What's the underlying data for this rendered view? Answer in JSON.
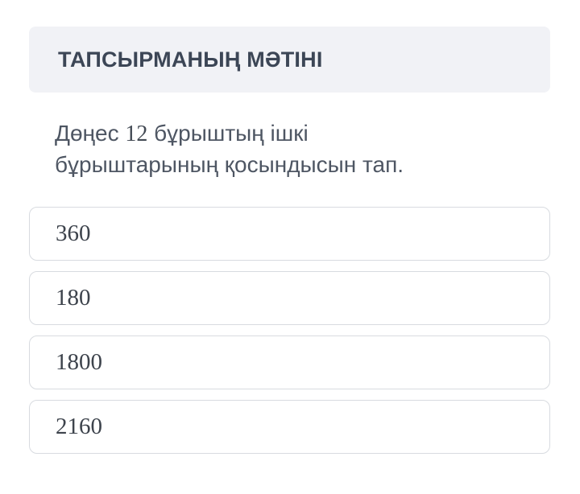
{
  "header": {
    "title": "ТАПСЫРМАНЫҢ МӘТІНІ"
  },
  "question": {
    "line1_prefix": "Дөңес ",
    "line1_number": "12",
    "line1_suffix": " бұрыштың ішкі",
    "line2": "бұрыштарының қосындысын тап."
  },
  "options": [
    "360",
    "180",
    "1800",
    "2160"
  ],
  "colors": {
    "page_background": "#ffffff",
    "header_background": "#f1f2f6",
    "header_text": "#3c4656",
    "question_text": "#4e5663",
    "option_border": "#d8dbe0",
    "option_text": "#3d434c"
  }
}
